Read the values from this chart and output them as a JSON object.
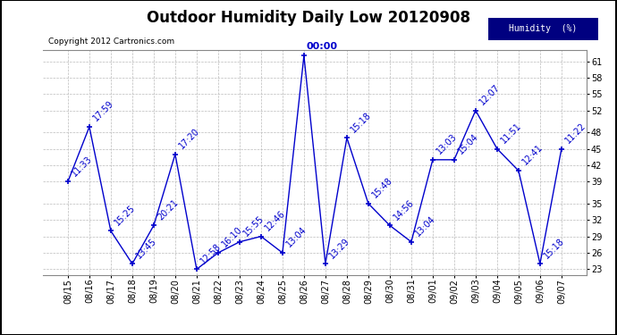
{
  "title": "Outdoor Humidity Daily Low 20120908",
  "copyright": "Copyright 2012 Cartronics.com",
  "legend_label": "Humidity  (%)",
  "line_color": "#0000CC",
  "bg_color": "#ffffff",
  "plot_bg_color": "#ffffff",
  "grid_color": "#bbbbbb",
  "dates": [
    "08/15",
    "08/16",
    "08/17",
    "08/18",
    "08/19",
    "08/20",
    "08/21",
    "08/22",
    "08/23",
    "08/24",
    "08/25",
    "08/26",
    "08/27",
    "08/28",
    "08/29",
    "08/30",
    "08/31",
    "09/01",
    "09/02",
    "09/03",
    "09/04",
    "09/05",
    "09/06",
    "09/07"
  ],
  "values": [
    39,
    49,
    30,
    24,
    31,
    44,
    23,
    26,
    28,
    29,
    26,
    62,
    24,
    47,
    35,
    31,
    28,
    43,
    43,
    52,
    45,
    41,
    24,
    45
  ],
  "times": [
    "11:33",
    "17:59",
    "15:25",
    "13:45",
    "20:21",
    "17:20",
    "12:58",
    "16:10",
    "15:55",
    "12:46",
    "13:04",
    "00:00",
    "13:29",
    "15:18",
    "15:48",
    "14:56",
    "13:04",
    "13:03",
    "15:04",
    "12:07",
    "11:51",
    "12:41",
    "15:18",
    "11:22"
  ],
  "ylim": [
    22,
    63
  ],
  "yticks": [
    23,
    26,
    29,
    32,
    35,
    39,
    42,
    45,
    48,
    52,
    55,
    58,
    61
  ],
  "peak_index": 11,
  "annotation_color": "#0000CC",
  "legend_bg": "#000080",
  "legend_text_color": "#ffffff",
  "title_fontsize": 12,
  "tick_fontsize": 7,
  "annot_fontsize": 7,
  "marker_size": 3,
  "border_color": "#000000"
}
